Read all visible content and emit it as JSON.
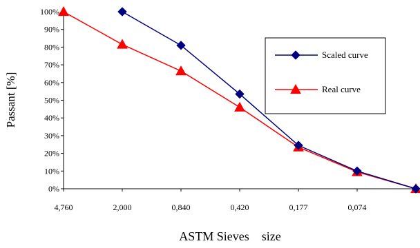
{
  "chart_data": {
    "type": "line",
    "title": "",
    "xlabel": "ASTM Sieves    size",
    "ylabel": "Passant   [%]",
    "categories": [
      "4,760",
      "2,000",
      "0,840",
      "0,420",
      "0,177",
      "0,074",
      ""
    ],
    "ylim": [
      0,
      100
    ],
    "y_tick_labels": [
      "0%",
      "10%",
      "20%",
      "30%",
      "40%",
      "50%",
      "60%",
      "70%",
      "80%",
      "90%",
      "100%"
    ],
    "grid": false,
    "legend_position": "right",
    "series": [
      {
        "name": "Scaled curve",
        "color": "#00007f",
        "marker": "diamond",
        "values": [
          null,
          100,
          81,
          53.5,
          24.5,
          10,
          0
        ]
      },
      {
        "name": "Real curve",
        "color": "#ff0000",
        "marker": "triangle",
        "values": [
          100,
          81.5,
          66.5,
          46,
          23.5,
          9.5,
          0
        ]
      }
    ]
  }
}
